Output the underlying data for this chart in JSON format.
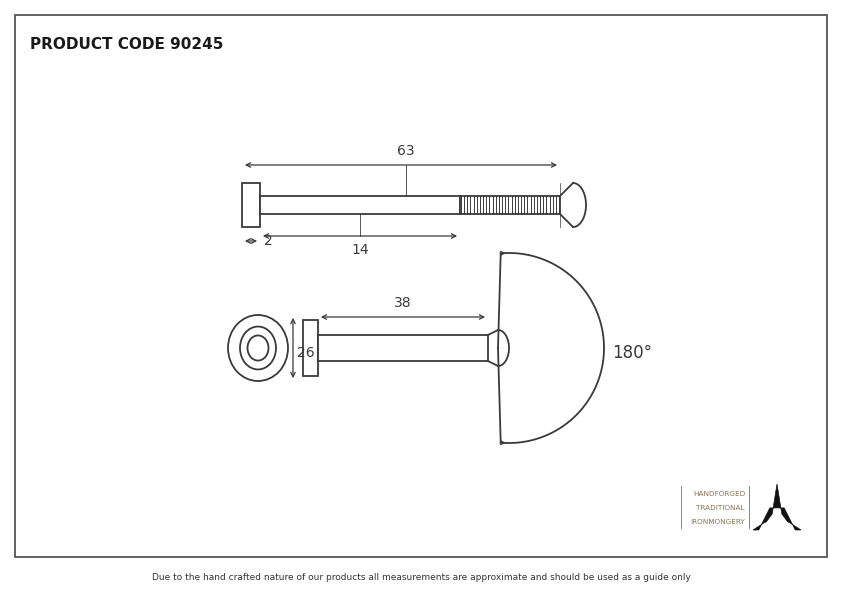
{
  "title": "PRODUCT CODE 90245",
  "footer": "Due to the hand crafted nature of our products all measurements are approximate and should be used as a guide only",
  "brand_line1": "HANDFORGED",
  "brand_line2": "TRADITIONAL",
  "brand_line3": "IRONMONGERY",
  "bg_color": "#ffffff",
  "border_color": "#555555",
  "draw_color": "#3a3a3a",
  "dim_color": "#3a3a3a",
  "brand_color": "#8a7355",
  "dim63": "63",
  "dim14": "14",
  "dim2": "2",
  "dim38": "38",
  "dim26": "26",
  "dim180": "180°"
}
